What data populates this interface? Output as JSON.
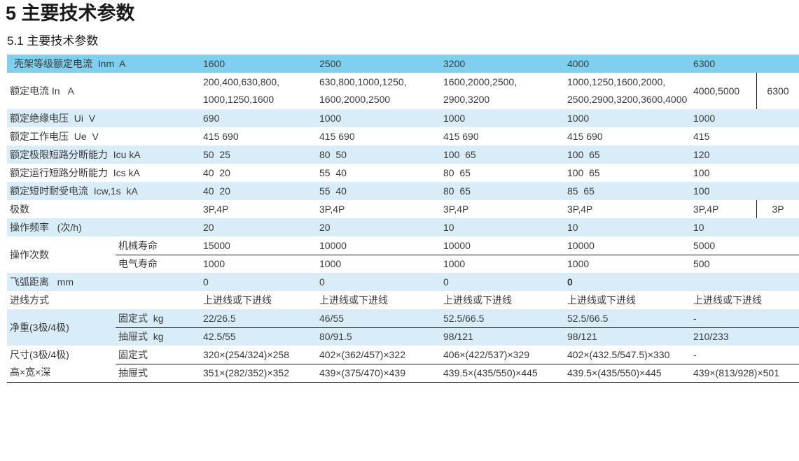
{
  "page": {
    "title": "5 主要技术参数",
    "subtitle": "5.1 主要技术参数"
  },
  "colors": {
    "header_row_blue": "#7fd0ee",
    "alt_row_light_blue": "#d9edf8",
    "text": "#3a3a3a",
    "divider_line": "#1a1a1a"
  },
  "table": {
    "frame_current": {
      "label": "壳架等级额定电流  Inm  A",
      "values": [
        "1600",
        "2500",
        "3200",
        "4000",
        "6300"
      ]
    },
    "rated_current": {
      "label": "额定电流 In   A",
      "cells": [
        {
          "l1": "200,400,630,800,",
          "l2": "1000,1250,1600"
        },
        {
          "l1": "630,800,1000,1250,",
          "l2": "1600,2000,2500"
        },
        {
          "l1": "1600,2000,2500,",
          "l2": "2900,3200"
        },
        {
          "l1": "1000,1250,1600,2000,",
          "l2": "2500,2900,3200,3600,4000"
        }
      ],
      "split_left": "4000,5000",
      "split_right": "6300"
    },
    "insulation_voltage": {
      "label": "额定绝缘电压  Ui  V",
      "values": [
        "690",
        "1000",
        "1000",
        "1000",
        "1000"
      ]
    },
    "working_voltage": {
      "label": "额定工作电压  Ue  V",
      "values": [
        "415 690",
        "415 690",
        "415 690",
        "415 690",
        "415"
      ]
    },
    "icu": {
      "label": "额定极限短路分断能力  Icu kA",
      "values": [
        "50  25",
        "80  50",
        "100  65",
        "100  65",
        "120"
      ]
    },
    "ics": {
      "label": "额定运行短路分断能力  Ics kA",
      "values": [
        "40  20",
        "55  40",
        "80  65",
        "100  65",
        "100"
      ]
    },
    "icw": {
      "label": "额定短时耐受电流  Icw,1s  kA",
      "values": [
        "40  20",
        "55  40",
        "80  65",
        "85  65",
        "100"
      ]
    },
    "poles": {
      "label": "极数",
      "values": [
        "3P,4P",
        "3P,4P",
        "3P,4P",
        "3P,4P"
      ],
      "split_left": "3P,4P",
      "split_right": "3P"
    },
    "op_frequency": {
      "label": "操作频率   (次/h)",
      "values": [
        "20",
        "20",
        "10",
        "10",
        "10"
      ]
    },
    "op_times": {
      "label": "操作次数",
      "sub1": {
        "label": "机械寿命",
        "values": [
          "15000",
          "10000",
          "10000",
          "10000",
          "5000"
        ]
      },
      "sub2": {
        "label": "电气寿命",
        "values": [
          "1000",
          "1000",
          "1000",
          "1000",
          "500"
        ]
      }
    },
    "arc_distance": {
      "label": "飞弧距离   mm",
      "values": [
        "0",
        "0",
        "0",
        "0",
        ""
      ]
    },
    "wiring": {
      "label": "进线方式",
      "values": [
        "上进线或下进线",
        "上进线或下进线",
        "上进线或下进线",
        "上进线或下进线",
        "上进线或下进线"
      ]
    },
    "weight": {
      "label": "净重(3极/4极)",
      "sub1": {
        "label": "固定式  kg",
        "values": [
          "22/26.5",
          "46/55",
          "52.5/66.5",
          "52.5/66.5",
          "-"
        ]
      },
      "sub2": {
        "label": "抽屉式  kg",
        "values": [
          "42.5/55",
          "80/91.5",
          "98/121",
          "98/121",
          "210/233"
        ]
      }
    },
    "dimensions": {
      "label_line1": "尺寸(3极/4极)",
      "label_line2": "高×宽×深",
      "sub1": {
        "label": "固定式",
        "values": [
          "320×(254/324)×258",
          "402×(362/457)×322",
          "406×(422/537)×329",
          "402×(432.5/547.5)×330",
          "-"
        ]
      },
      "sub2": {
        "label": "抽屉式",
        "values": [
          "351×(282/352)×352",
          "439×(375/470)×439",
          "439.5×(435/550)×445",
          "439.5×(435/550)×445",
          "439×(813/928)×501"
        ]
      }
    }
  }
}
